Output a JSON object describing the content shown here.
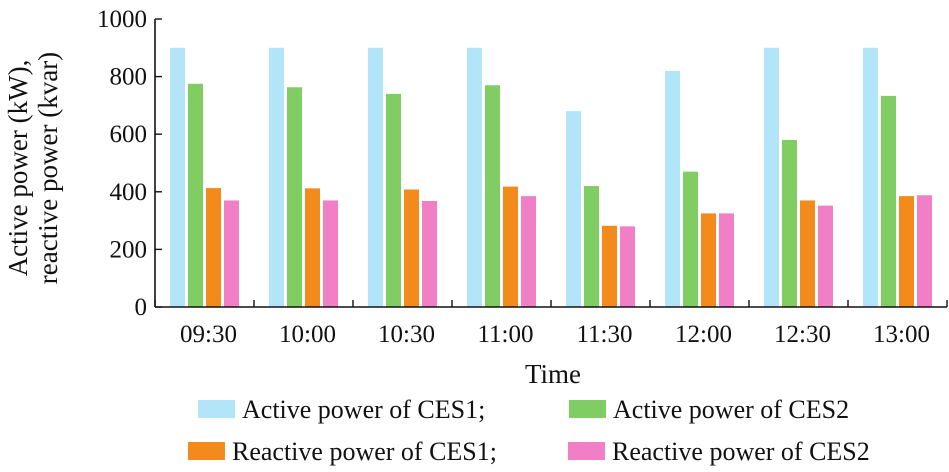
{
  "chart_data": {
    "type": "bar",
    "title": "",
    "xlabel": "Time",
    "ylabel_lines": [
      "Active power (kW),",
      "reactive power (kvar)"
    ],
    "ylim": [
      0,
      1000
    ],
    "yticks": [
      0,
      200,
      400,
      600,
      800,
      1000
    ],
    "categories": [
      "09:30",
      "10:00",
      "10:30",
      "11:00",
      "11:30",
      "12:00",
      "12:30",
      "13:00"
    ],
    "series": [
      {
        "name": "Active power of CES1",
        "color": "#b3e5f8",
        "values": [
          900,
          900,
          900,
          900,
          680,
          820,
          900,
          900
        ]
      },
      {
        "name": "Active power of CES2",
        "color": "#7fcd63",
        "values": [
          775,
          763,
          740,
          770,
          420,
          470,
          580,
          733
        ]
      },
      {
        "name": "Reactive power of CES1",
        "color": "#f28a1c",
        "values": [
          413,
          412,
          408,
          418,
          282,
          325,
          370,
          385
        ]
      },
      {
        "name": "Reactive power of CES2",
        "color": "#f07fc6",
        "values": [
          370,
          370,
          368,
          385,
          280,
          325,
          352,
          388
        ]
      }
    ],
    "grid": false,
    "legend": {
      "placement": "bottom",
      "rows": [
        [
          {
            "series": 0,
            "label": "Active power of CES1;"
          },
          {
            "series": 1,
            "label": "Active power of CES2"
          }
        ],
        [
          {
            "series": 2,
            "label": "Reactive power of CES1;"
          },
          {
            "series": 3,
            "label": "Reactive power of CES2"
          }
        ]
      ]
    }
  }
}
